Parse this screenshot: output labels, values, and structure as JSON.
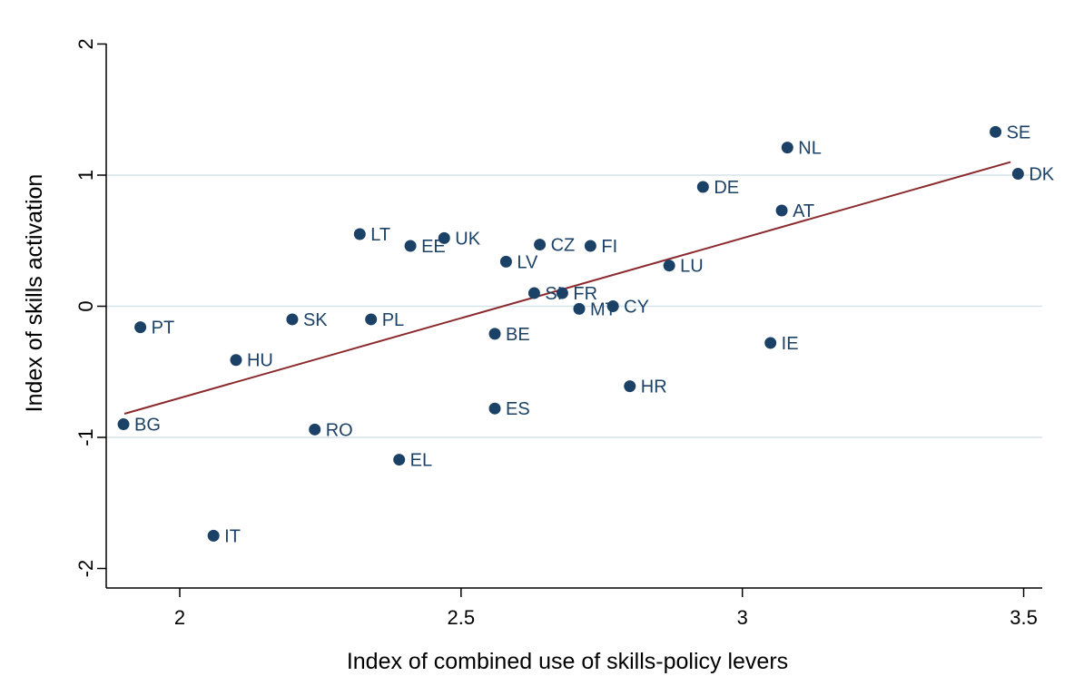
{
  "chart_data": {
    "type": "scatter",
    "title": "",
    "xlabel": "Index of combined use of skills-policy levers",
    "ylabel": "Index of skills activation",
    "xlim": [
      1.9,
      3.54
    ],
    "ylim": [
      -2.2,
      2.2
    ],
    "xticks": [
      {
        "value": 2,
        "label": "2"
      },
      {
        "value": 2.5,
        "label": "2.5"
      },
      {
        "value": 3,
        "label": "3"
      },
      {
        "value": 3.5,
        "label": "3.5"
      }
    ],
    "yticks": [
      {
        "value": 2,
        "label": "2"
      },
      {
        "value": 1,
        "label": "1"
      },
      {
        "value": 0,
        "label": "0"
      },
      {
        "value": -1,
        "label": "-1"
      },
      {
        "value": -2,
        "label": "-2"
      }
    ],
    "grid": "horizontal",
    "fit_line": {
      "x": [
        1.9,
        3.48
      ],
      "y": [
        -0.82,
        1.1
      ]
    },
    "points": [
      {
        "label": "SE",
        "x": 3.45,
        "y": 1.33
      },
      {
        "label": "NL",
        "x": 3.08,
        "y": 1.21
      },
      {
        "label": "DK",
        "x": 3.49,
        "y": 1.01
      },
      {
        "label": "DE",
        "x": 2.93,
        "y": 0.91
      },
      {
        "label": "AT",
        "x": 3.07,
        "y": 0.73
      },
      {
        "label": "LT",
        "x": 2.32,
        "y": 0.55
      },
      {
        "label": "UK",
        "x": 2.47,
        "y": 0.52
      },
      {
        "label": "EE",
        "x": 2.41,
        "y": 0.46
      },
      {
        "label": "CZ",
        "x": 2.64,
        "y": 0.47
      },
      {
        "label": "FI",
        "x": 2.73,
        "y": 0.46
      },
      {
        "label": "LV",
        "x": 2.58,
        "y": 0.34
      },
      {
        "label": "LU",
        "x": 2.87,
        "y": 0.31
      },
      {
        "label": "SI",
        "x": 2.63,
        "y": 0.1
      },
      {
        "label": "FR",
        "x": 2.68,
        "y": 0.1
      },
      {
        "label": "MT",
        "x": 2.71,
        "y": -0.02
      },
      {
        "label": "CY",
        "x": 2.77,
        "y": 0.0
      },
      {
        "label": "SK",
        "x": 2.2,
        "y": -0.1
      },
      {
        "label": "PL",
        "x": 2.34,
        "y": -0.1
      },
      {
        "label": "PT",
        "x": 1.93,
        "y": -0.16
      },
      {
        "label": "BE",
        "x": 2.56,
        "y": -0.21
      },
      {
        "label": "IE",
        "x": 3.05,
        "y": -0.28
      },
      {
        "label": "HU",
        "x": 2.1,
        "y": -0.41
      },
      {
        "label": "HR",
        "x": 2.8,
        "y": -0.61
      },
      {
        "label": "ES",
        "x": 2.56,
        "y": -0.78
      },
      {
        "label": "BG",
        "x": 1.9,
        "y": -0.9
      },
      {
        "label": "RO",
        "x": 2.24,
        "y": -0.94
      },
      {
        "label": "EL",
        "x": 2.39,
        "y": -1.17
      },
      {
        "label": "IT",
        "x": 2.06,
        "y": -1.75
      }
    ],
    "colors": {
      "marker": "#1b4266",
      "label": "#1b4266",
      "fit_line": "#8b2a2e",
      "grid": "#d5e4e9",
      "axis": "#000000"
    }
  }
}
